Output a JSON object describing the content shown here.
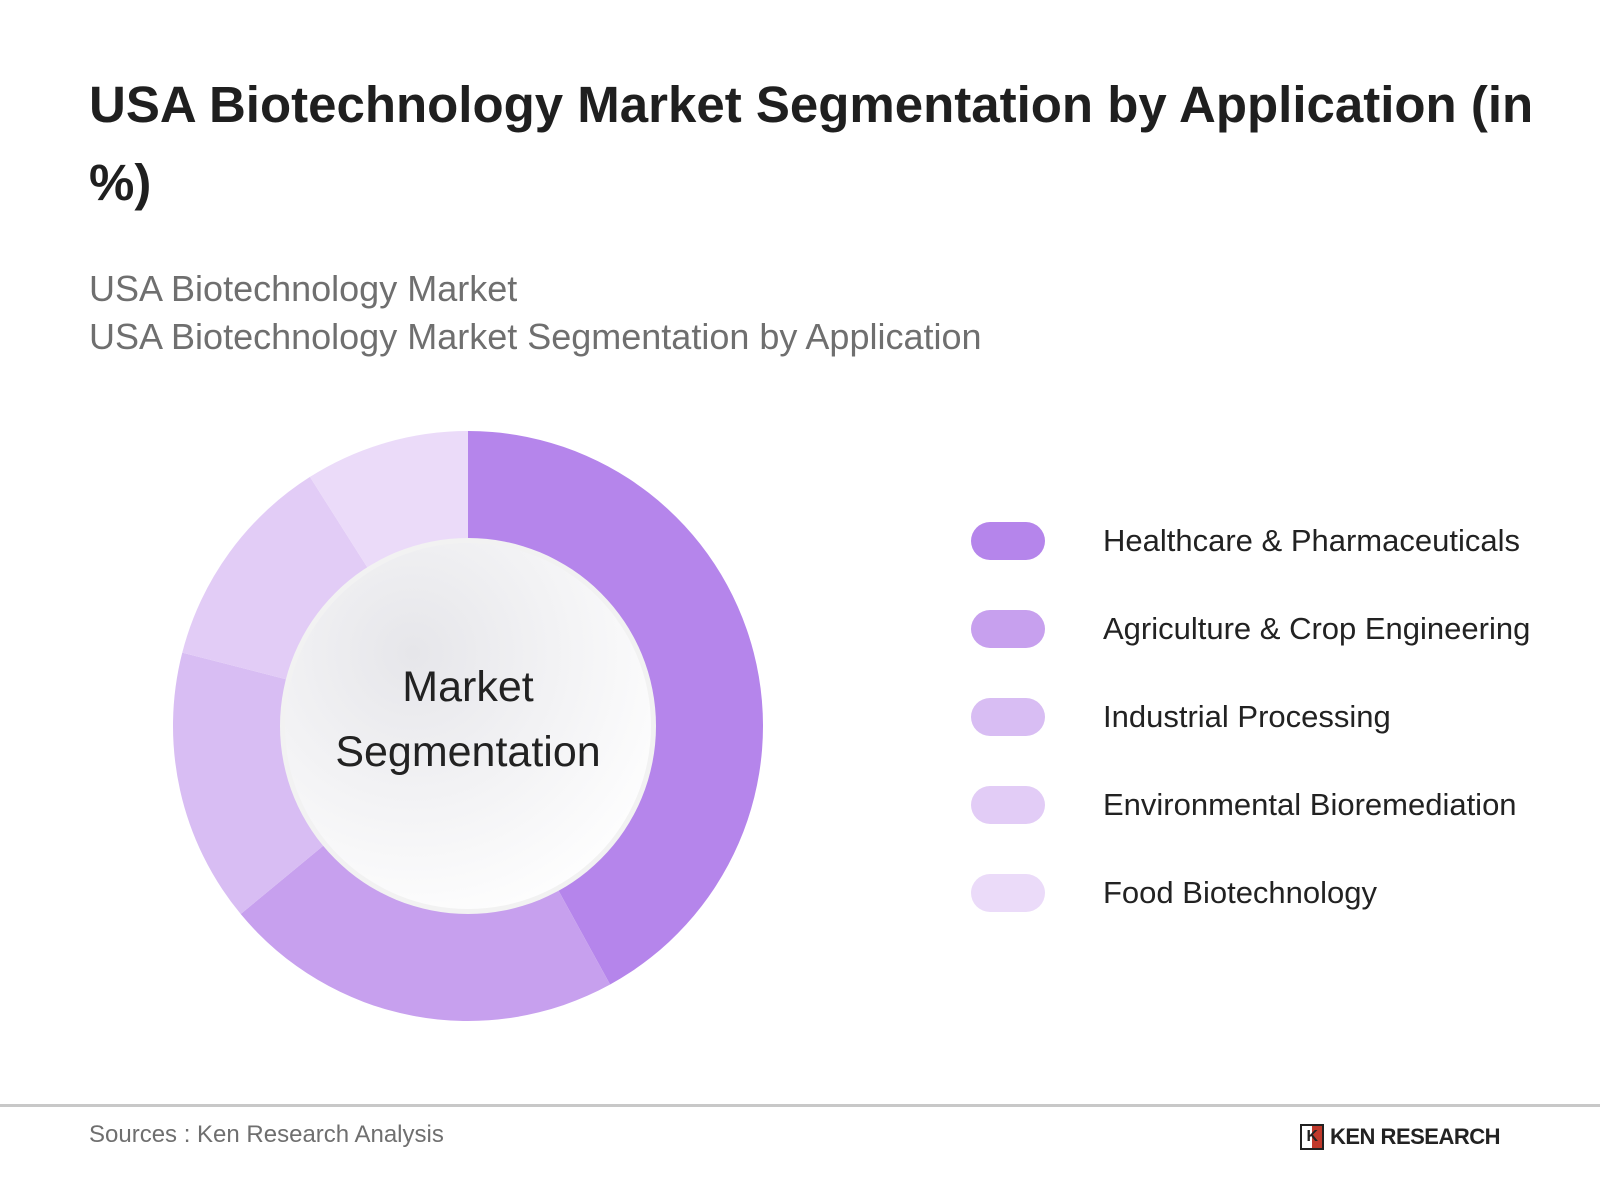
{
  "title": "USA Biotechnology Market Segmentation by Application (in %)",
  "subtitle_1": "USA Biotechnology Market",
  "subtitle_2": "USA Biotechnology Market Segmentation by Application",
  "center_label_1": "Market",
  "center_label_2": "Segmentation",
  "source": "Sources : Ken Research Analysis",
  "logo_text": "KEN RESEARCH",
  "chart_data": {
    "type": "pie",
    "variant": "donut",
    "title": "USA Biotechnology Market Segmentation by Application (in %)",
    "categories": [
      "Healthcare & Pharmaceuticals",
      "Agriculture & Crop Engineering",
      "Industrial Processing",
      "Environmental Bioremediation",
      "Food Biotechnology"
    ],
    "values": [
      42,
      22,
      15,
      12,
      9
    ],
    "colors": [
      "#b585eb",
      "#c7a0ee",
      "#d8bdf3",
      "#e2ccf6",
      "#ebdbf9"
    ],
    "legend_placement": "right",
    "start_angle": "top, clockwise"
  }
}
